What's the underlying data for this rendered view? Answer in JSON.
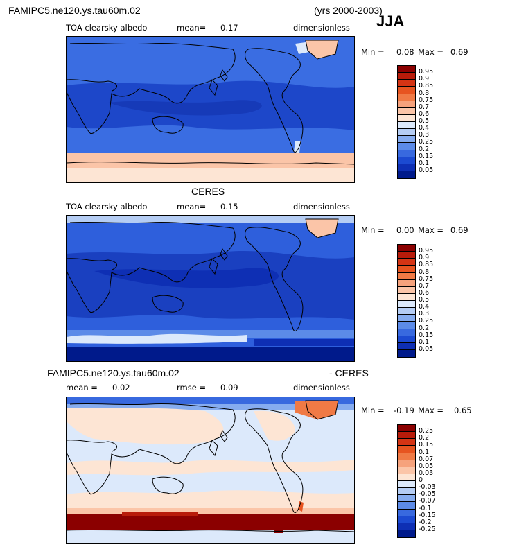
{
  "chart_data": [
    {
      "type": "heatmap",
      "title": "FAMIPC5.ne120.ys.tau60m.02",
      "period": "(yrs 2000-2003)",
      "season": "JJA",
      "left_label": "TOA clearsky albedo",
      "mean_label": "mean=",
      "mean_value": "0.17",
      "units": "dimensionless",
      "min_label": "Min =",
      "min_value": "0.08",
      "max_label": "Max =",
      "max_value": "0.69",
      "colorbar_ticks": [
        "0.95",
        "0.9",
        "0.85",
        "0.8",
        "0.75",
        "0.7",
        "0.6",
        "0.5",
        "0.4",
        "0.3",
        "0.25",
        "0.2",
        "0.15",
        "0.1",
        "0.05"
      ],
      "colorbar_colors": [
        "#8b0000",
        "#b81b0a",
        "#d53414",
        "#e75420",
        "#f07a45",
        "#f6a27c",
        "#fbc5a8",
        "#fde5d4",
        "#dce9fb",
        "#b5cdf4",
        "#86acef",
        "#5c8be8",
        "#3869df",
        "#1c4ad1",
        "#0e2fb4",
        "#001a8b"
      ]
    },
    {
      "type": "heatmap",
      "title": "CERES",
      "left_label": "TOA clearsky albedo",
      "mean_label": "mean=",
      "mean_value": "0.15",
      "units": "dimensionless",
      "min_label": "Min =",
      "min_value": "0.00",
      "max_label": "Max =",
      "max_value": "0.69",
      "colorbar_ticks": [
        "0.95",
        "0.9",
        "0.85",
        "0.8",
        "0.75",
        "0.7",
        "0.6",
        "0.5",
        "0.4",
        "0.3",
        "0.25",
        "0.2",
        "0.15",
        "0.1",
        "0.05"
      ],
      "colorbar_colors": [
        "#8b0000",
        "#b81b0a",
        "#d53414",
        "#e75420",
        "#f07a45",
        "#f6a27c",
        "#fbc5a8",
        "#fde5d4",
        "#dce9fb",
        "#b5cdf4",
        "#86acef",
        "#5c8be8",
        "#3869df",
        "#1c4ad1",
        "#0e2fb4",
        "#001a8b"
      ]
    },
    {
      "type": "heatmap",
      "title": "FAMIPC5.ne120.ys.tau60m.02",
      "title_suffix": "- CERES",
      "mean_label": "mean =",
      "mean_value": "0.02",
      "rmse_label": "rmse =",
      "rmse_value": "0.09",
      "units": "dimensionless",
      "min_label": "Min =",
      "min_value": "-0.19",
      "max_label": "Max =",
      "max_value": "0.65",
      "colorbar_ticks": [
        "0.25",
        "0.2",
        "0.15",
        "0.1",
        "0.07",
        "0.05",
        "0.03",
        "0",
        "-0.03",
        "-0.05",
        "-0.07",
        "-0.1",
        "-0.15",
        "-0.2",
        "-0.25"
      ],
      "colorbar_colors": [
        "#8b0000",
        "#b81b0a",
        "#d53414",
        "#e75420",
        "#f07a45",
        "#f6a27c",
        "#fbc5a8",
        "#fde5d4",
        "#dce9fb",
        "#b5cdf4",
        "#86acef",
        "#5c8be8",
        "#3869df",
        "#1c4ad1",
        "#0e2fb4",
        "#001a8b"
      ]
    }
  ]
}
